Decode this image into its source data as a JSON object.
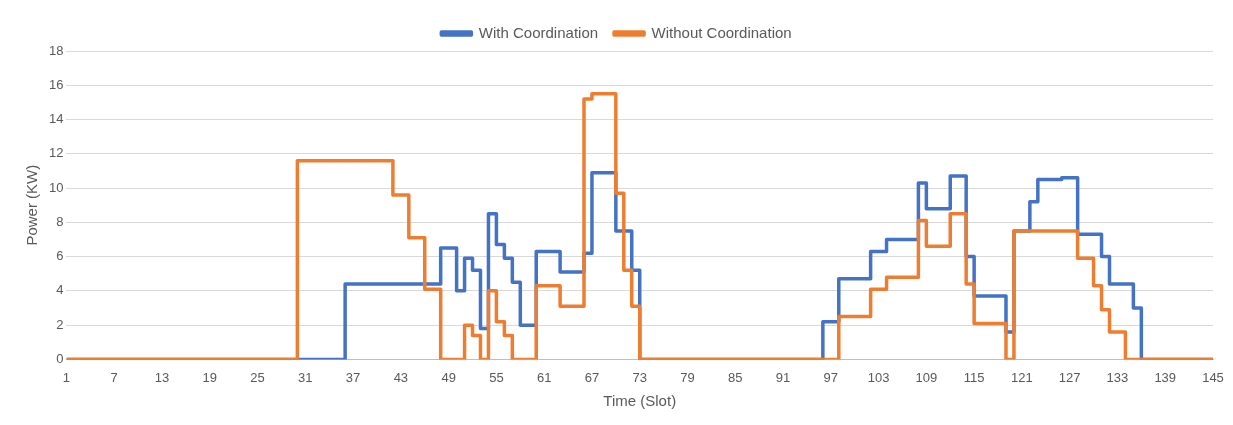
{
  "chart_data": {
    "type": "step",
    "xlabel": "Time (Slot)",
    "ylabel": "Power (KW)",
    "xlim": [
      1,
      145
    ],
    "xticks": [
      1,
      7,
      13,
      19,
      25,
      31,
      37,
      43,
      49,
      55,
      61,
      67,
      73,
      79,
      85,
      91,
      97,
      103,
      109,
      115,
      121,
      127,
      133,
      139,
      145
    ],
    "ylim": [
      0,
      18
    ],
    "yticks": [
      0,
      2,
      4,
      6,
      8,
      10,
      12,
      14,
      16,
      18
    ],
    "grid": "y",
    "legend": "top",
    "marker": "none",
    "line_style": "solid",
    "series": [
      {
        "name": "With Coordination",
        "color": "#4472c4",
        "x": [
          1,
          36,
          48,
          50,
          51,
          52,
          53,
          54,
          55,
          56,
          57,
          58,
          60,
          63,
          66,
          67,
          70,
          72,
          73,
          96,
          98,
          102,
          104,
          108,
          109,
          112,
          114,
          115,
          119,
          120,
          122,
          123,
          126,
          128,
          131,
          132,
          135,
          136,
          145
        ],
        "values": [
          0,
          4.4,
          6.5,
          4.0,
          5.9,
          5.2,
          1.8,
          8.5,
          6.7,
          5.9,
          4.5,
          2.0,
          6.3,
          5.1,
          6.2,
          10.9,
          7.5,
          5.2,
          0,
          2.2,
          4.7,
          6.3,
          7.0,
          10.3,
          8.8,
          10.7,
          6.0,
          3.7,
          1.6,
          7.5,
          9.2,
          10.5,
          10.6,
          7.3,
          6.0,
          4.4,
          3.0,
          0,
          0
        ]
      },
      {
        "name": "Without Coordination",
        "color": "#ed7d31",
        "x": [
          1,
          30,
          42,
          44,
          46,
          48,
          51,
          52,
          53,
          54,
          55,
          56,
          57,
          60,
          63,
          66,
          67,
          70,
          71,
          72,
          73,
          98,
          102,
          104,
          108,
          109,
          112,
          114,
          115,
          119,
          120,
          128,
          130,
          131,
          132,
          134,
          145
        ],
        "values": [
          0,
          11.6,
          9.6,
          7.1,
          4.1,
          0,
          2.0,
          1.4,
          0,
          4.0,
          2.2,
          1.4,
          0,
          4.3,
          3.1,
          15.2,
          15.5,
          9.7,
          5.2,
          3.1,
          0,
          2.5,
          4.1,
          4.8,
          8.1,
          6.6,
          8.5,
          4.4,
          2.1,
          0,
          7.5,
          5.9,
          4.3,
          2.9,
          1.6,
          0,
          0
        ]
      }
    ]
  }
}
